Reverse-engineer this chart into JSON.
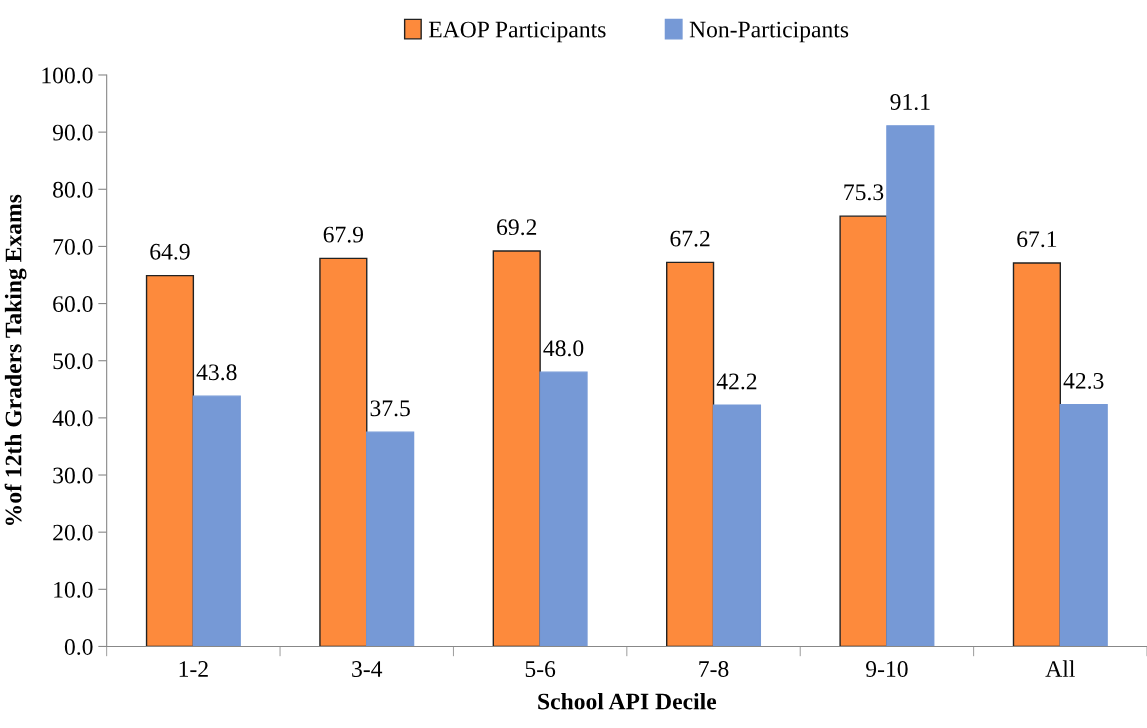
{
  "chart_data": {
    "type": "bar",
    "xlabel": "School API Decile",
    "ylabel": "%of 12th Graders Taking Exams",
    "categories": [
      "1-2",
      "3-4",
      "5-6",
      "7-8",
      "9-10",
      "All"
    ],
    "series": [
      {
        "name": "EAOP Participants",
        "color": "#fd8a3c",
        "values": [
          64.9,
          67.9,
          69.2,
          67.2,
          75.3,
          67.1
        ],
        "value_labels": [
          "64.9",
          "67.9",
          "69.2",
          "67.2",
          "75.3",
          "67.1"
        ]
      },
      {
        "name": "Non-Participants",
        "color": "#7699d6",
        "values": [
          43.8,
          37.5,
          48.0,
          42.2,
          91.1,
          42.3
        ],
        "value_labels": [
          "43.8",
          "37.5",
          "48.0",
          "42.2",
          "91.1",
          "42.3"
        ]
      }
    ],
    "ylim": [
      0,
      100
    ],
    "yticks": [
      {
        "value": 0,
        "label": "0.0"
      },
      {
        "value": 10,
        "label": "10.0"
      },
      {
        "value": 20,
        "label": "20.0"
      },
      {
        "value": 30,
        "label": "30.0"
      },
      {
        "value": 40,
        "label": "40.0"
      },
      {
        "value": 50,
        "label": "50.0"
      },
      {
        "value": 60,
        "label": "60.0"
      },
      {
        "value": 70,
        "label": "70.0"
      },
      {
        "value": 80,
        "label": "80.0"
      },
      {
        "value": 90,
        "label": "90.0"
      },
      {
        "value": 100,
        "label": "100.0"
      }
    ],
    "grid": false,
    "legend": "top"
  }
}
